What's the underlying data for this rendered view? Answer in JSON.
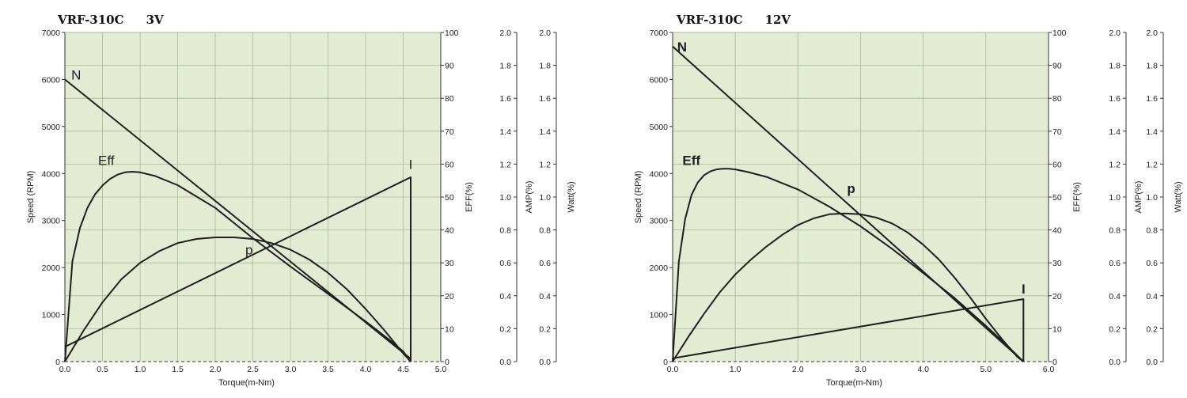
{
  "chart_data": [
    {
      "type": "line",
      "title": "VRF-310C",
      "voltage": "3V",
      "xlabel": "Torque(m-Nm)",
      "ylabel": "Speed (RPM)",
      "y2label": "EFF(%)",
      "y3label": "AMP(%)",
      "y4label": "Watt(%)",
      "xlim": [
        0,
        5.0
      ],
      "ylim": [
        0,
        7000
      ],
      "y2lim": [
        0,
        100
      ],
      "y3lim": [
        0,
        2.0
      ],
      "y4lim": [
        0,
        2.0
      ],
      "x_ticks": [
        "0.0",
        "0.5",
        "1.0",
        "1.5",
        "2.0",
        "2.5",
        "3.0",
        "3.5",
        "4.0",
        "4.5",
        "5.0"
      ],
      "y_ticks": [
        "0",
        "1000",
        "2000",
        "3000",
        "4000",
        "5000",
        "6000",
        "7000"
      ],
      "y2_ticks": [
        "0",
        "10",
        "20",
        "30",
        "40",
        "50",
        "60",
        "70",
        "80",
        "90",
        "100"
      ],
      "y3_ticks": [
        "0.0",
        "0.2",
        "0.4",
        "0.6",
        "0.8",
        "1.0",
        "1.2",
        "1.4",
        "1.6",
        "1.8",
        "2.0"
      ],
      "y4_ticks": [
        "0.0",
        "0.2",
        "0.4",
        "0.6",
        "0.8",
        "1.0",
        "1.2",
        "1.4",
        "1.6",
        "1.8",
        "2.0"
      ],
      "grid": true,
      "background": "#e3ecd3",
      "grid_color": "#a9b89a",
      "line_color": "#1f1f1f",
      "series": [
        {
          "name": "N",
          "axis": "speed",
          "x": [
            0,
            4.6
          ],
          "y": [
            6000,
            60
          ]
        },
        {
          "name": "I",
          "axis": "amp",
          "x": [
            0,
            4.6,
            4.6
          ],
          "y": [
            0.09,
            1.12,
            0
          ]
        },
        {
          "name": "Eff",
          "axis": "eff",
          "x": [
            0,
            0.1,
            0.2,
            0.3,
            0.4,
            0.5,
            0.6,
            0.7,
            0.8,
            0.9,
            1.0,
            1.2,
            1.5,
            2.0,
            2.5,
            3.0,
            3.5,
            4.0,
            4.3,
            4.5,
            4.6
          ],
          "y": [
            0,
            30.5,
            40.6,
            46.7,
            50.8,
            53.5,
            55.5,
            56.8,
            57.5,
            57.7,
            57.5,
            56.4,
            53.6,
            46.7,
            37.5,
            28.9,
            20.6,
            12.2,
            6.9,
            3.1,
            0
          ]
        },
        {
          "name": "p",
          "axis": "watt",
          "x": [
            0,
            0.25,
            0.5,
            0.75,
            1.0,
            1.25,
            1.5,
            1.75,
            2.0,
            2.25,
            2.5,
            2.75,
            3.0,
            3.25,
            3.5,
            3.75,
            4.0,
            4.25,
            4.5,
            4.6
          ],
          "y": [
            0,
            0.19,
            0.36,
            0.5,
            0.6,
            0.67,
            0.72,
            0.745,
            0.755,
            0.755,
            0.745,
            0.72,
            0.68,
            0.62,
            0.54,
            0.44,
            0.32,
            0.19,
            0.05,
            0
          ]
        }
      ],
      "labels": [
        {
          "text": "N",
          "x": 0.15,
          "y": 6000
        },
        {
          "text": "Eff",
          "x": 0.55,
          "y": 4180
        },
        {
          "text": "p",
          "x": 2.45,
          "y": 2280
        },
        {
          "text": "I",
          "x": 4.6,
          "y": 4100
        }
      ]
    },
    {
      "type": "line",
      "title": "VRF-310C",
      "voltage": "12V",
      "xlabel": "Torque(m-Nm)",
      "ylabel": "Speed (RPM)",
      "y2label": "EFF(%)",
      "y3label": "AMP(%)",
      "y4label": "Watt(%)",
      "xlim": [
        0,
        6.0
      ],
      "ylim": [
        0,
        7000
      ],
      "y2lim": [
        0,
        100
      ],
      "y3lim": [
        0,
        2.0
      ],
      "y4lim": [
        0,
        2.0
      ],
      "x_ticks": [
        "0.0",
        "1.0",
        "2.0",
        "3.0",
        "4.0",
        "5.0",
        "6.0"
      ],
      "y_ticks": [
        "0",
        "1000",
        "2000",
        "3000",
        "4000",
        "5000",
        "6000",
        "7000"
      ],
      "y2_ticks": [
        "0",
        "10",
        "20",
        "30",
        "40",
        "50",
        "60",
        "70",
        "80",
        "90",
        "100"
      ],
      "y3_ticks": [
        "0.0",
        "0.2",
        "0.4",
        "0.6",
        "0.8",
        "1.0",
        "1.2",
        "1.4",
        "1.6",
        "1.8",
        "2.0"
      ],
      "y4_ticks": [
        "0.0",
        "0.2",
        "0.4",
        "0.6",
        "0.8",
        "1.0",
        "1.2",
        "1.4",
        "1.6",
        "1.8",
        "2.0"
      ],
      "grid": true,
      "background": "#e3ecd3",
      "grid_color": "#a9b89a",
      "line_color": "#1f1f1f",
      "series": [
        {
          "name": "N",
          "axis": "speed",
          "x": [
            0,
            5.6
          ],
          "y": [
            6700,
            0
          ]
        },
        {
          "name": "I",
          "axis": "amp",
          "x": [
            0,
            5.6,
            5.6
          ],
          "y": [
            0.02,
            0.38,
            0
          ]
        },
        {
          "name": "Eff",
          "axis": "eff",
          "x": [
            0,
            0.1,
            0.2,
            0.3,
            0.4,
            0.5,
            0.6,
            0.7,
            0.8,
            0.9,
            1.0,
            1.2,
            1.5,
            2.0,
            2.5,
            3.0,
            3.5,
            4.0,
            4.5,
            5.0,
            5.3,
            5.6
          ],
          "y": [
            0,
            30.5,
            43.3,
            50.6,
            54.4,
            56.6,
            57.8,
            58.4,
            58.6,
            58.6,
            58.4,
            57.6,
            56.1,
            52.3,
            47.1,
            41.1,
            34.3,
            26.9,
            19.3,
            10.9,
            5.6,
            0
          ]
        },
        {
          "name": "p",
          "axis": "watt",
          "x": [
            0,
            0.25,
            0.5,
            0.75,
            1.0,
            1.25,
            1.5,
            1.75,
            2.0,
            2.25,
            2.5,
            2.75,
            3.0,
            3.25,
            3.5,
            3.75,
            4.0,
            4.25,
            4.5,
            4.75,
            5.0,
            5.25,
            5.5,
            5.6
          ],
          "y": [
            0,
            0.15,
            0.29,
            0.42,
            0.53,
            0.62,
            0.7,
            0.77,
            0.83,
            0.87,
            0.895,
            0.9,
            0.895,
            0.875,
            0.84,
            0.785,
            0.71,
            0.62,
            0.51,
            0.39,
            0.26,
            0.14,
            0.03,
            0
          ]
        }
      ],
      "labels": [
        {
          "text": "N",
          "x": 0.15,
          "y": 6600
        },
        {
          "text": "Eff",
          "x": 0.3,
          "y": 4180
        },
        {
          "text": "p",
          "x": 2.85,
          "y": 3580
        },
        {
          "text": "I",
          "x": 5.6,
          "y": 1450
        }
      ]
    }
  ]
}
